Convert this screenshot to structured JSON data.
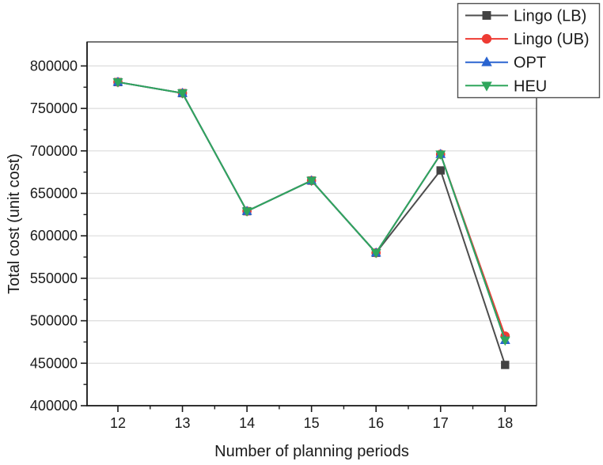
{
  "chart_data": {
    "type": "line",
    "title": "",
    "xlabel": "Number of planning periods",
    "ylabel": "Total cost (unit cost)",
    "x": [
      12,
      13,
      14,
      15,
      16,
      17,
      18
    ],
    "xlim": [
      11.52,
      18.49
    ],
    "ylim": [
      400000,
      828000
    ],
    "xticks": [
      12,
      13,
      14,
      15,
      16,
      17,
      18
    ],
    "xticks_minor": [
      12.5,
      13.5,
      14.5,
      15.5,
      16.5,
      17.5
    ],
    "yticks": [
      400000,
      450000,
      500000,
      550000,
      600000,
      650000,
      700000,
      750000,
      800000
    ],
    "yticks_minor": [
      425000,
      475000,
      525000,
      575000,
      625000,
      675000,
      725000,
      775000
    ],
    "grid": "horizontal-major",
    "legend_position": "top-right",
    "series": [
      {
        "name": "Lingo (LB)",
        "marker": "square",
        "color": "#4d4d4d",
        "marker_color": "#424242",
        "values": [
          781000,
          768000,
          629000,
          665000,
          580000,
          677000,
          448000
        ]
      },
      {
        "name": "Lingo (UB)",
        "marker": "circle",
        "color": "#ee3b33",
        "marker_color": "#ee3b33",
        "values": [
          781000,
          768000,
          629000,
          665000,
          580000,
          696000,
          482000
        ]
      },
      {
        "name": "OPT",
        "marker": "triangle-up",
        "color": "#2a64d0",
        "marker_color": "#2a64d0",
        "values": [
          781000,
          768000,
          629000,
          665000,
          580000,
          696000,
          477000
        ]
      },
      {
        "name": "HEU",
        "marker": "triangle-down",
        "color": "#2fa65c",
        "marker_color": "#2fa65c",
        "values": [
          781000,
          768000,
          629000,
          665000,
          580000,
          696000,
          477000
        ]
      }
    ],
    "frame_color": "#1a1a1a",
    "gridline_color": "#dcdcdc",
    "legend_border_color": "#4f4f4f"
  }
}
